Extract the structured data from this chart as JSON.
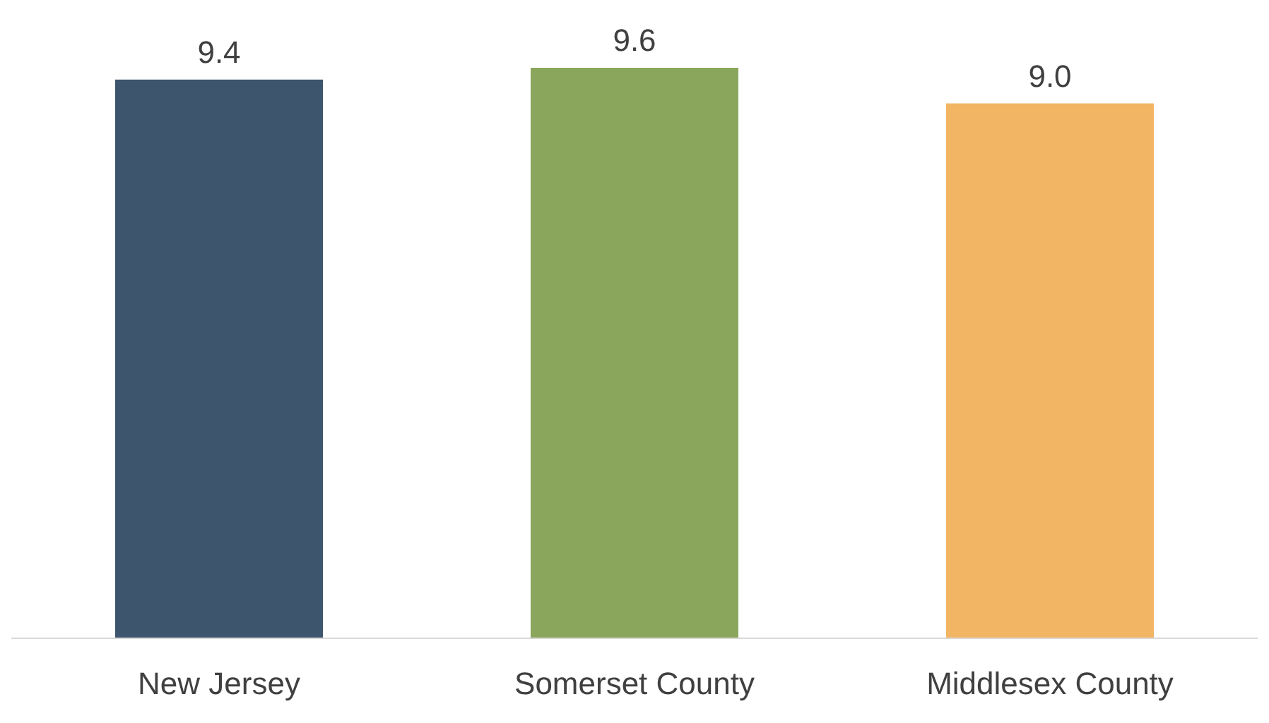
{
  "chart_data": {
    "type": "bar",
    "categories": [
      "New Jersey",
      "Somerset County",
      "Middlesex County"
    ],
    "values": [
      9.4,
      9.6,
      9.0
    ],
    "colors": [
      "#3d566e",
      "#8aa65c",
      "#f2b563"
    ],
    "value_labels": [
      "9.4",
      "9.6",
      "9.0"
    ]
  }
}
